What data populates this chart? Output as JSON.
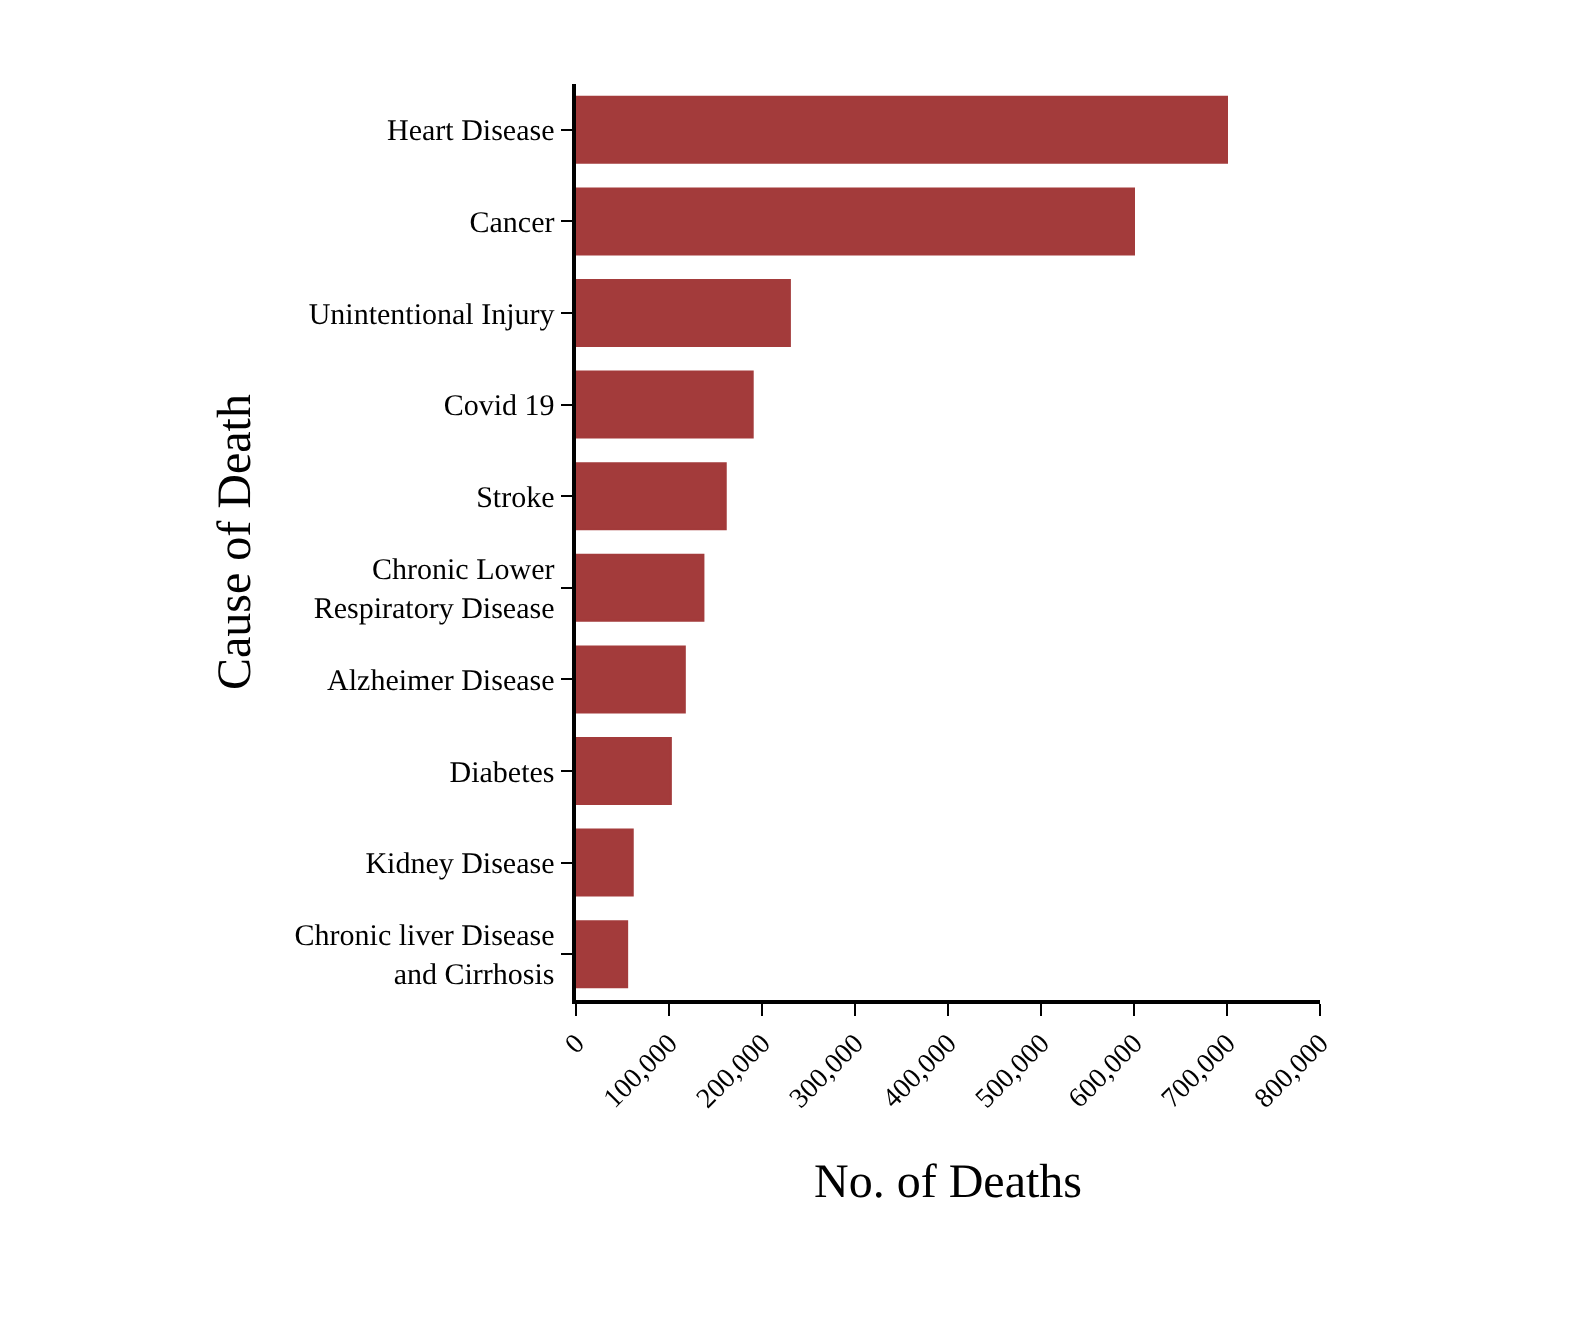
{
  "chart_data": {
    "type": "bar",
    "orientation": "horizontal",
    "xlabel": "No. of Deaths",
    "ylabel": "Cause of Death",
    "categories": [
      "Heart Disease",
      "Cancer",
      "Unintentional Injury",
      "Covid 19",
      "Stroke",
      "Chronic Lower\nRespiratory Disease",
      "Alzheimer Disease",
      "Diabetes",
      "Kidney Disease",
      "Chronic liver Disease\nand Cirrhosis"
    ],
    "values": [
      700000,
      600000,
      230000,
      190000,
      161000,
      137000,
      117000,
      102000,
      61000,
      55000
    ],
    "color": "#a33b3b",
    "xlim": [
      0,
      800000
    ],
    "xticks": [
      0,
      {
        "value": 100000,
        "label": "100,000"
      },
      {
        "value": 200000,
        "label": "200,000"
      },
      {
        "value": 300000,
        "label": "300,000"
      },
      {
        "value": 400000,
        "label": "400,000"
      },
      {
        "value": 500000,
        "label": "500,000"
      },
      {
        "value": 600000,
        "label": "600,000"
      },
      {
        "value": 700000,
        "label": "700,000"
      },
      {
        "value": 800000,
        "label": "800,000"
      }
    ]
  }
}
